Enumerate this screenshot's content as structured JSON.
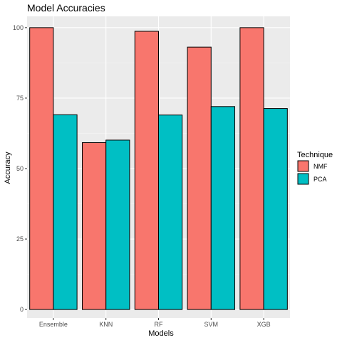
{
  "colors": {
    "panel_background": "#EBEBEB",
    "grid_major": "#FFFFFF",
    "grid_minor": "#F5F5F5",
    "bar_outline": "#000000",
    "text": "#000000",
    "tick_text": "#4D4D4D"
  },
  "chart_data": {
    "type": "bar",
    "title": "Model Accuracies",
    "xlabel": "Models",
    "ylabel": "Accuracy",
    "categories": [
      "Ensemble",
      "KNN",
      "RF",
      "SVM",
      "XGB"
    ],
    "yticks": [
      0,
      25,
      50,
      75,
      100
    ],
    "ylim": [
      -3,
      104
    ],
    "grid": true,
    "legend": {
      "title": "Technique",
      "position": "right"
    },
    "series": [
      {
        "name": "NMF",
        "color": "#F8766D",
        "values": [
          100,
          59.2,
          98.7,
          93.1,
          100
        ]
      },
      {
        "name": "PCA",
        "color": "#00BFC4",
        "values": [
          69.1,
          60.1,
          69.0,
          72.0,
          71.3
        ]
      }
    ]
  }
}
